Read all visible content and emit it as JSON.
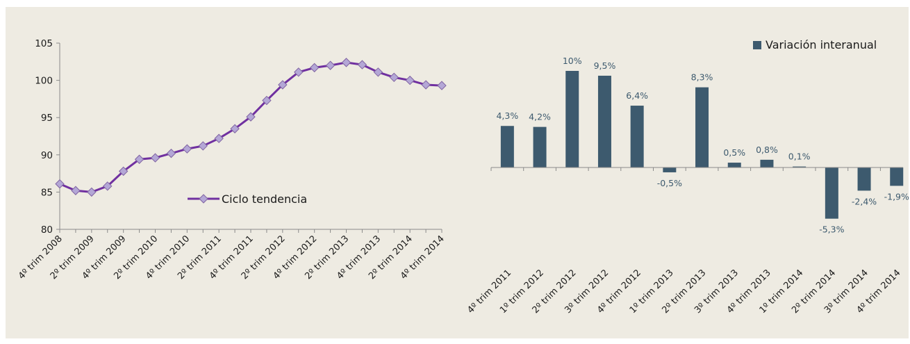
{
  "chart_data": [
    {
      "type": "line",
      "legend": "Ciclo tendencia",
      "legend_position": "center",
      "color": "#7030a0",
      "marker_color": "#b4a7d6",
      "ylim": [
        80,
        105
      ],
      "yticks": [
        80,
        85,
        90,
        95,
        100,
        105
      ],
      "x_tick_labels": [
        "4º trim 2008",
        "2º trim 2009",
        "4º trim 2009",
        "2º trim 2010",
        "4º trim 2010",
        "2º trim 2011",
        "4º trim 2011",
        "2º trim 2012",
        "4º trim 2012",
        "2º trim 2013",
        "4º trim 2013",
        "2º trim 2014",
        "4º trim 2014"
      ],
      "values": [
        86.1,
        85.2,
        85.0,
        85.8,
        87.8,
        89.4,
        89.6,
        90.2,
        90.8,
        91.2,
        92.2,
        93.5,
        95.1,
        97.3,
        99.4,
        101.1,
        101.7,
        102.0,
        102.4,
        102.1,
        101.1,
        100.4,
        100.0,
        99.4,
        99.3
      ],
      "grid": false
    },
    {
      "type": "bar",
      "legend": "Variación interanual",
      "legend_position": "top-right",
      "color": "#3d5a6e",
      "categories": [
        "4º trim 2011",
        "1º trim 2012",
        "2º trim 2012",
        "3º trim 2012",
        "4º trim 2012",
        "1º trim 2013",
        "2º trim 2013",
        "3º trim 2013",
        "4º trim 2013",
        "1º trim 2014",
        "2º trim 2014",
        "3º trim 2014",
        "4º trim 2014"
      ],
      "values": [
        4.3,
        4.2,
        10,
        9.5,
        6.4,
        -0.5,
        8.3,
        0.5,
        0.8,
        0.1,
        -5.3,
        -2.4,
        -1.9
      ],
      "data_labels": [
        "4,3%",
        "4,2%",
        "10%",
        "9,5%",
        "6,4%",
        "-0,5%",
        "8,3%",
        "0,5%",
        "0,8%",
        "0,1%",
        "-5,3%",
        "-2,4%",
        "-1,9%"
      ],
      "grid": false
    }
  ]
}
